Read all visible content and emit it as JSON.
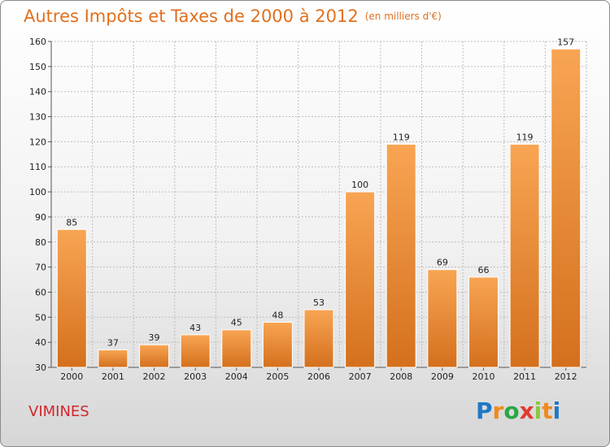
{
  "title": "Autres Impôts et Taxes de 2000 à 2012",
  "unit_note": "(en milliers d'€)",
  "city": "VIMINES",
  "logo_text": "Proxiti",
  "colors": {
    "title": "#e0701e",
    "city": "#d1272d",
    "bar_top": "#f8a553",
    "bar_bottom": "#d4701d",
    "grid": "#bdbdbd"
  },
  "chart_data": {
    "type": "bar",
    "categories": [
      "2000",
      "2001",
      "2002",
      "2003",
      "2004",
      "2005",
      "2006",
      "2007",
      "2008",
      "2009",
      "2010",
      "2011",
      "2012"
    ],
    "values": [
      85,
      37,
      39,
      43,
      45,
      48,
      53,
      100,
      119,
      69,
      66,
      119,
      157
    ],
    "title": "Autres Impôts et Taxes de 2000 à 2012",
    "xlabel": "",
    "ylabel": "",
    "ylim": [
      30,
      160
    ],
    "yticks": [
      30,
      40,
      50,
      60,
      70,
      80,
      90,
      100,
      110,
      120,
      130,
      140,
      150,
      160
    ],
    "grid": true,
    "legend": "none"
  }
}
